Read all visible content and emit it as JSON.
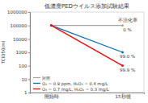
{
  "chart_data": {
    "type": "line",
    "title": "低濃度PEDウイルス添加試験結果",
    "y_label": "TCID50/ml",
    "categories": [
      "開始時",
      "15秒後"
    ],
    "series": [
      {
        "name": "対照",
        "color": "#a6a6a6",
        "values": [
          100000,
          100000
        ],
        "marker": "circle"
      },
      {
        "name": "O₃ = 0.9 ppm, H₂O₂ = 0.4 mg/L",
        "color": "#0070c0",
        "values": [
          100000,
          1000
        ],
        "marker": "circle"
      },
      {
        "name": "O₃ = 0.7 mg/L, H₂O₂ = 0.3 mg/L",
        "color": "#ff0000",
        "values": [
          100000,
          100
        ],
        "marker": "circle"
      }
    ],
    "annotations": [
      "不活化率",
      "0 %",
      "99.0 %",
      "99.9 %"
    ],
    "log": "y",
    "ylim": [
      1,
      1000000
    ],
    "yticks": [
      1,
      10,
      100,
      1000,
      10000,
      100000,
      1000000
    ],
    "grid": false,
    "legend": "lower left"
  }
}
